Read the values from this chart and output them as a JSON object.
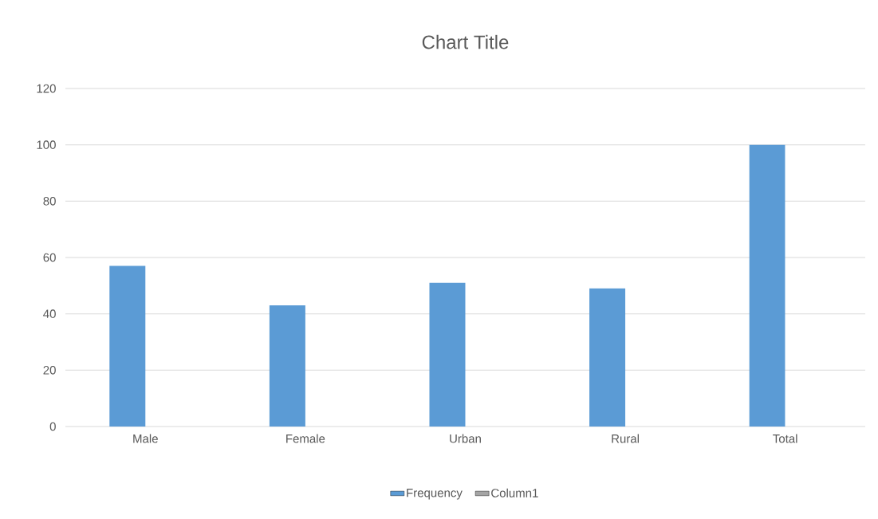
{
  "chart_data": {
    "type": "bar",
    "title": "Chart Title",
    "categories": [
      "Male",
      "Female",
      "Urban",
      "Rural",
      "Total"
    ],
    "series": [
      {
        "name": "Frequency",
        "color": "#5b9bd5",
        "values": [
          57,
          43,
          51,
          49,
          100
        ]
      },
      {
        "name": "Column1",
        "color": "#a5a5a5",
        "values": [
          null,
          null,
          null,
          null,
          null
        ]
      }
    ],
    "ylim": [
      0,
      120
    ],
    "yticks": [
      0,
      20,
      40,
      60,
      80,
      100,
      120
    ],
    "grid": "y",
    "legend": "bottom"
  }
}
